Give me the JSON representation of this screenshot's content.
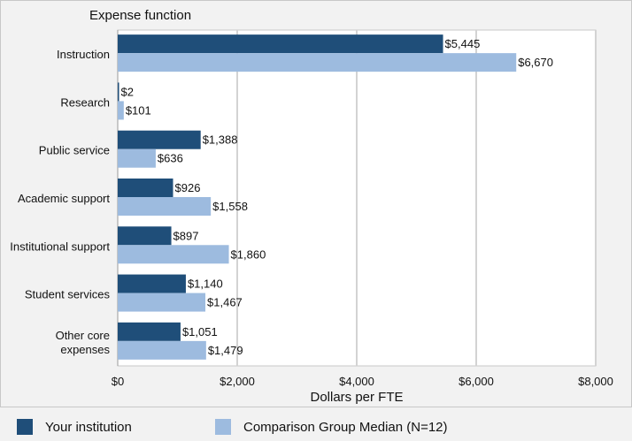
{
  "chart_data": {
    "type": "bar",
    "orientation": "horizontal",
    "title": "Expense function",
    "xlabel": "Dollars per FTE",
    "categories": [
      "Instruction",
      "Research",
      "Public service",
      "Academic support",
      "Institutional support",
      "Student services",
      "Other core expenses"
    ],
    "series": [
      {
        "name": "Your institution",
        "color": "#1f4e79",
        "values": [
          5445,
          2,
          1388,
          926,
          897,
          1140,
          1051
        ],
        "labels": [
          "$5,445",
          "$2",
          "$1,388",
          "$926",
          "$897",
          "$1,140",
          "$1,051"
        ]
      },
      {
        "name": "Comparison Group Median (N=12)",
        "color": "#9dbbdf",
        "values": [
          6670,
          101,
          636,
          1558,
          1860,
          1467,
          1479
        ],
        "labels": [
          "$6,670",
          "$101",
          "$636",
          "$1,558",
          "$1,860",
          "$1,467",
          "$1,479"
        ]
      }
    ],
    "xlim": [
      0,
      8000
    ],
    "xticks": [
      0,
      2000,
      4000,
      6000,
      8000
    ],
    "xtick_labels": [
      "$0",
      "$2,000",
      "$4,000",
      "$6,000",
      "$8,000"
    ],
    "grid": true,
    "legend_position": "bottom"
  }
}
